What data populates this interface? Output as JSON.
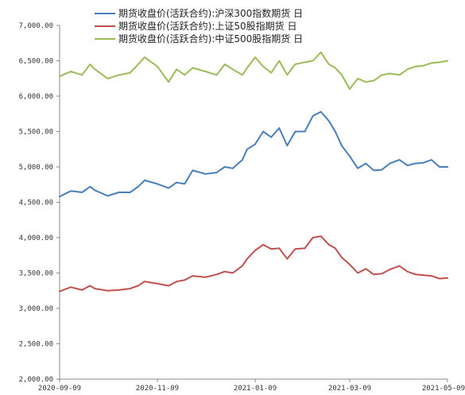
{
  "chart_data": {
    "type": "line",
    "title": "",
    "xlabel": "",
    "ylabel": "",
    "ylim": [
      2000,
      7000
    ],
    "y_ticks": [
      2000,
      2500,
      3000,
      3500,
      4000,
      4500,
      5000,
      5500,
      6000,
      6500,
      7000
    ],
    "y_tick_labels": [
      "2,000.00",
      "2,500.00",
      "3,000.00",
      "3,500.00",
      "4,000.00",
      "4,500.00",
      "5,000.00",
      "5,500.00",
      "6,000.00",
      "6,500.00",
      "7,000.00"
    ],
    "x_range": [
      "2020-09-09",
      "2021-05-09"
    ],
    "x_ticks": [
      "2020-09-09",
      "2020-11-09",
      "2021-01-09",
      "2021-03-09",
      "2021-05-09"
    ],
    "x_tick_labels": [
      "2020-09-09",
      "2020-11-09",
      "2021-01-09",
      "2021-03-09",
      "2021-05-09"
    ],
    "grid": false,
    "legend_position": "top",
    "series": [
      {
        "name": "期货收盘价(活跃合约):沪深300指数期货 日",
        "color": "#4a7ebb",
        "points": [
          [
            "2020-09-09",
            4580
          ],
          [
            "2020-09-16",
            4660
          ],
          [
            "2020-09-23",
            4640
          ],
          [
            "2020-09-28",
            4720
          ],
          [
            "2020-10-01",
            4670
          ],
          [
            "2020-10-09",
            4590
          ],
          [
            "2020-10-16",
            4640
          ],
          [
            "2020-10-23",
            4640
          ],
          [
            "2020-10-28",
            4720
          ],
          [
            "2020-11-01",
            4810
          ],
          [
            "2020-11-09",
            4760
          ],
          [
            "2020-11-16",
            4700
          ],
          [
            "2020-11-21",
            4780
          ],
          [
            "2020-11-26",
            4760
          ],
          [
            "2020-12-01",
            4950
          ],
          [
            "2020-12-09",
            4900
          ],
          [
            "2020-12-16",
            4920
          ],
          [
            "2020-12-21",
            5000
          ],
          [
            "2020-12-26",
            4980
          ],
          [
            "2021-01-01",
            5100
          ],
          [
            "2021-01-04",
            5250
          ],
          [
            "2021-01-09",
            5320
          ],
          [
            "2021-01-14",
            5500
          ],
          [
            "2021-01-19",
            5420
          ],
          [
            "2021-01-24",
            5550
          ],
          [
            "2021-01-29",
            5300
          ],
          [
            "2021-02-03",
            5500
          ],
          [
            "2021-02-09",
            5500
          ],
          [
            "2021-02-14",
            5720
          ],
          [
            "2021-02-19",
            5780
          ],
          [
            "2021-02-24",
            5650
          ],
          [
            "2021-02-28",
            5500
          ],
          [
            "2021-03-04",
            5300
          ],
          [
            "2021-03-09",
            5150
          ],
          [
            "2021-03-14",
            4980
          ],
          [
            "2021-03-19",
            5050
          ],
          [
            "2021-03-24",
            4950
          ],
          [
            "2021-03-29",
            4960
          ],
          [
            "2021-04-03",
            5050
          ],
          [
            "2021-04-09",
            5100
          ],
          [
            "2021-04-14",
            5020
          ],
          [
            "2021-04-19",
            5050
          ],
          [
            "2021-04-24",
            5060
          ],
          [
            "2021-04-29",
            5100
          ],
          [
            "2021-05-04",
            5000
          ],
          [
            "2021-05-09",
            5000
          ]
        ]
      },
      {
        "name": "期货收盘价(活跃合约):上证50股指期货 日",
        "color": "#c0504d",
        "points": [
          [
            "2020-09-09",
            3240
          ],
          [
            "2020-09-16",
            3300
          ],
          [
            "2020-09-23",
            3260
          ],
          [
            "2020-09-28",
            3320
          ],
          [
            "2020-10-01",
            3280
          ],
          [
            "2020-10-09",
            3250
          ],
          [
            "2020-10-16",
            3260
          ],
          [
            "2020-10-23",
            3280
          ],
          [
            "2020-10-28",
            3320
          ],
          [
            "2020-11-01",
            3380
          ],
          [
            "2020-11-09",
            3350
          ],
          [
            "2020-11-16",
            3320
          ],
          [
            "2020-11-21",
            3380
          ],
          [
            "2020-11-26",
            3400
          ],
          [
            "2020-12-01",
            3460
          ],
          [
            "2020-12-09",
            3440
          ],
          [
            "2020-12-16",
            3480
          ],
          [
            "2020-12-21",
            3520
          ],
          [
            "2020-12-26",
            3500
          ],
          [
            "2021-01-01",
            3600
          ],
          [
            "2021-01-04",
            3700
          ],
          [
            "2021-01-09",
            3820
          ],
          [
            "2021-01-14",
            3900
          ],
          [
            "2021-01-19",
            3840
          ],
          [
            "2021-01-24",
            3850
          ],
          [
            "2021-01-29",
            3700
          ],
          [
            "2021-02-03",
            3840
          ],
          [
            "2021-02-09",
            3850
          ],
          [
            "2021-02-14",
            4000
          ],
          [
            "2021-02-19",
            4020
          ],
          [
            "2021-02-24",
            3900
          ],
          [
            "2021-02-28",
            3850
          ],
          [
            "2021-03-04",
            3720
          ],
          [
            "2021-03-09",
            3620
          ],
          [
            "2021-03-14",
            3500
          ],
          [
            "2021-03-19",
            3560
          ],
          [
            "2021-03-24",
            3480
          ],
          [
            "2021-03-29",
            3490
          ],
          [
            "2021-04-03",
            3550
          ],
          [
            "2021-04-09",
            3600
          ],
          [
            "2021-04-14",
            3520
          ],
          [
            "2021-04-19",
            3480
          ],
          [
            "2021-04-24",
            3470
          ],
          [
            "2021-04-29",
            3460
          ],
          [
            "2021-05-04",
            3420
          ],
          [
            "2021-05-09",
            3430
          ]
        ]
      },
      {
        "name": "期货收盘价(活跃合约):中证500股指期货 日",
        "color": "#9bbb59",
        "points": [
          [
            "2020-09-09",
            6280
          ],
          [
            "2020-09-16",
            6350
          ],
          [
            "2020-09-23",
            6300
          ],
          [
            "2020-09-28",
            6450
          ],
          [
            "2020-10-01",
            6380
          ],
          [
            "2020-10-09",
            6250
          ],
          [
            "2020-10-16",
            6300
          ],
          [
            "2020-10-23",
            6330
          ],
          [
            "2020-10-28",
            6450
          ],
          [
            "2020-11-01",
            6550
          ],
          [
            "2020-11-09",
            6420
          ],
          [
            "2020-11-16",
            6200
          ],
          [
            "2020-11-21",
            6380
          ],
          [
            "2020-11-26",
            6300
          ],
          [
            "2020-12-01",
            6400
          ],
          [
            "2020-12-09",
            6350
          ],
          [
            "2020-12-16",
            6300
          ],
          [
            "2020-12-21",
            6450
          ],
          [
            "2020-12-26",
            6380
          ],
          [
            "2021-01-01",
            6300
          ],
          [
            "2021-01-04",
            6400
          ],
          [
            "2021-01-09",
            6550
          ],
          [
            "2021-01-14",
            6420
          ],
          [
            "2021-01-19",
            6330
          ],
          [
            "2021-01-24",
            6500
          ],
          [
            "2021-01-29",
            6300
          ],
          [
            "2021-02-03",
            6450
          ],
          [
            "2021-02-09",
            6480
          ],
          [
            "2021-02-14",
            6500
          ],
          [
            "2021-02-19",
            6620
          ],
          [
            "2021-02-24",
            6450
          ],
          [
            "2021-02-28",
            6400
          ],
          [
            "2021-03-04",
            6300
          ],
          [
            "2021-03-09",
            6100
          ],
          [
            "2021-03-14",
            6250
          ],
          [
            "2021-03-19",
            6200
          ],
          [
            "2021-03-24",
            6220
          ],
          [
            "2021-03-29",
            6300
          ],
          [
            "2021-04-03",
            6320
          ],
          [
            "2021-04-09",
            6300
          ],
          [
            "2021-04-14",
            6380
          ],
          [
            "2021-04-19",
            6420
          ],
          [
            "2021-04-24",
            6430
          ],
          [
            "2021-04-29",
            6470
          ],
          [
            "2021-05-04",
            6480
          ],
          [
            "2021-05-09",
            6500
          ]
        ]
      }
    ]
  }
}
